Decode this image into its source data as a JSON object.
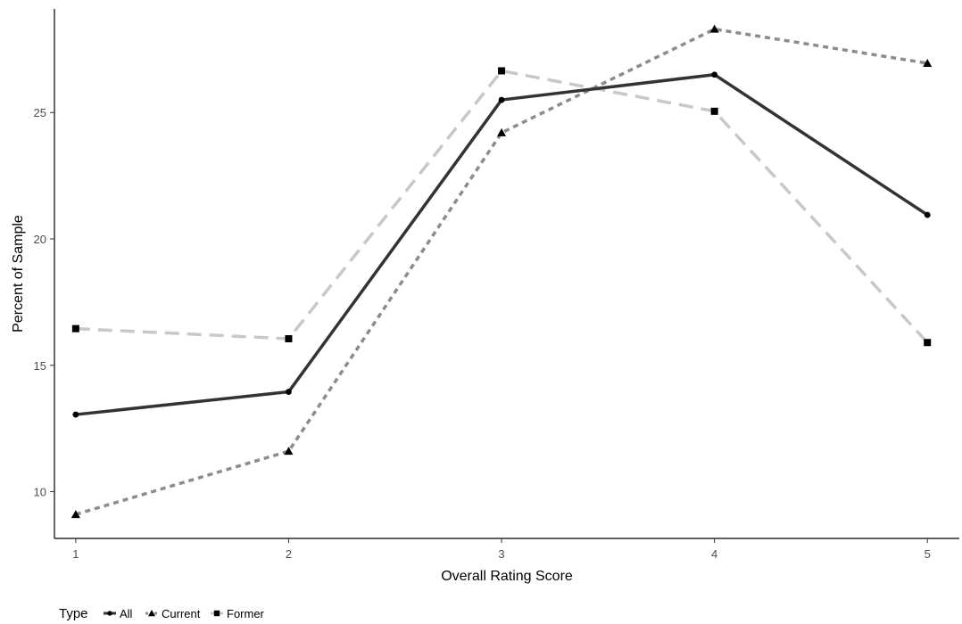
{
  "chart_data": {
    "type": "line",
    "title": "",
    "xlabel": "Overall Rating Score",
    "ylabel": "Percent of Sample",
    "x": [
      1,
      2,
      3,
      4,
      5
    ],
    "xticks": [
      "1",
      "2",
      "3",
      "4",
      "5"
    ],
    "xlim": [
      0.9,
      5.15
    ],
    "yticks": [
      10,
      15,
      20,
      25
    ],
    "ytick_labels": [
      "10",
      "15",
      "20",
      "25"
    ],
    "ylim": [
      8.15,
      29.1
    ],
    "grid": false,
    "legend": {
      "title": "Type",
      "position": "bottom-left",
      "entries": [
        "All",
        "Current",
        "Former"
      ]
    },
    "series": [
      {
        "name": "All",
        "values": [
          13.05,
          13.95,
          25.5,
          26.5,
          20.95
        ],
        "color": "#333333",
        "linestyle": "solid",
        "marker": "circle"
      },
      {
        "name": "Current",
        "values": [
          9.1,
          11.6,
          24.2,
          28.3,
          26.95
        ],
        "color": "#8c8c8c",
        "linestyle": "dotted",
        "marker": "triangle"
      },
      {
        "name": "Former",
        "values": [
          16.45,
          16.05,
          26.65,
          25.05,
          15.9
        ],
        "color": "#c8c8c8",
        "linestyle": "dashed",
        "marker": "square"
      }
    ]
  }
}
